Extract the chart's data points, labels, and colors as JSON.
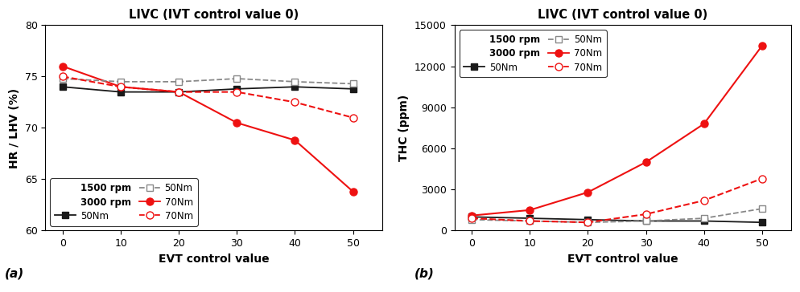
{
  "x": [
    0,
    10,
    20,
    30,
    40,
    50
  ],
  "title": "LIVC (IVT control value 0)",
  "xlabel": "EVT control value",
  "chart_a": {
    "ylabel": "HR / LHV (%)",
    "ylim": [
      60,
      80
    ],
    "yticks": [
      60,
      65,
      70,
      75,
      80
    ],
    "series": {
      "1500rpm_50Nm": [
        74.0,
        73.5,
        73.5,
        73.8,
        74.0,
        73.8
      ],
      "1500rpm_70Nm": [
        76.0,
        74.0,
        73.5,
        70.5,
        68.8,
        63.8
      ],
      "3000rpm_50Nm": [
        74.8,
        74.5,
        74.5,
        74.8,
        74.5,
        74.3
      ],
      "3000rpm_70Nm": [
        75.0,
        74.0,
        73.5,
        73.5,
        72.5,
        71.0
      ]
    }
  },
  "chart_b": {
    "ylabel": "THC (ppm)",
    "ylim": [
      0,
      15000
    ],
    "yticks": [
      0,
      3000,
      6000,
      9000,
      12000,
      15000
    ],
    "series": {
      "1500rpm_50Nm": [
        1000,
        900,
        800,
        700,
        700,
        600
      ],
      "1500rpm_70Nm": [
        1100,
        1500,
        2800,
        5000,
        7800,
        13500
      ],
      "3000rpm_50Nm": [
        800,
        700,
        600,
        700,
        900,
        1600
      ],
      "3000rpm_70Nm": [
        900,
        700,
        600,
        1200,
        2200,
        3800
      ]
    }
  },
  "color_black": "#1a1a1a",
  "color_red": "#ee1111",
  "color_gray": "#888888",
  "label_a": "(a)",
  "label_b": "(b)"
}
